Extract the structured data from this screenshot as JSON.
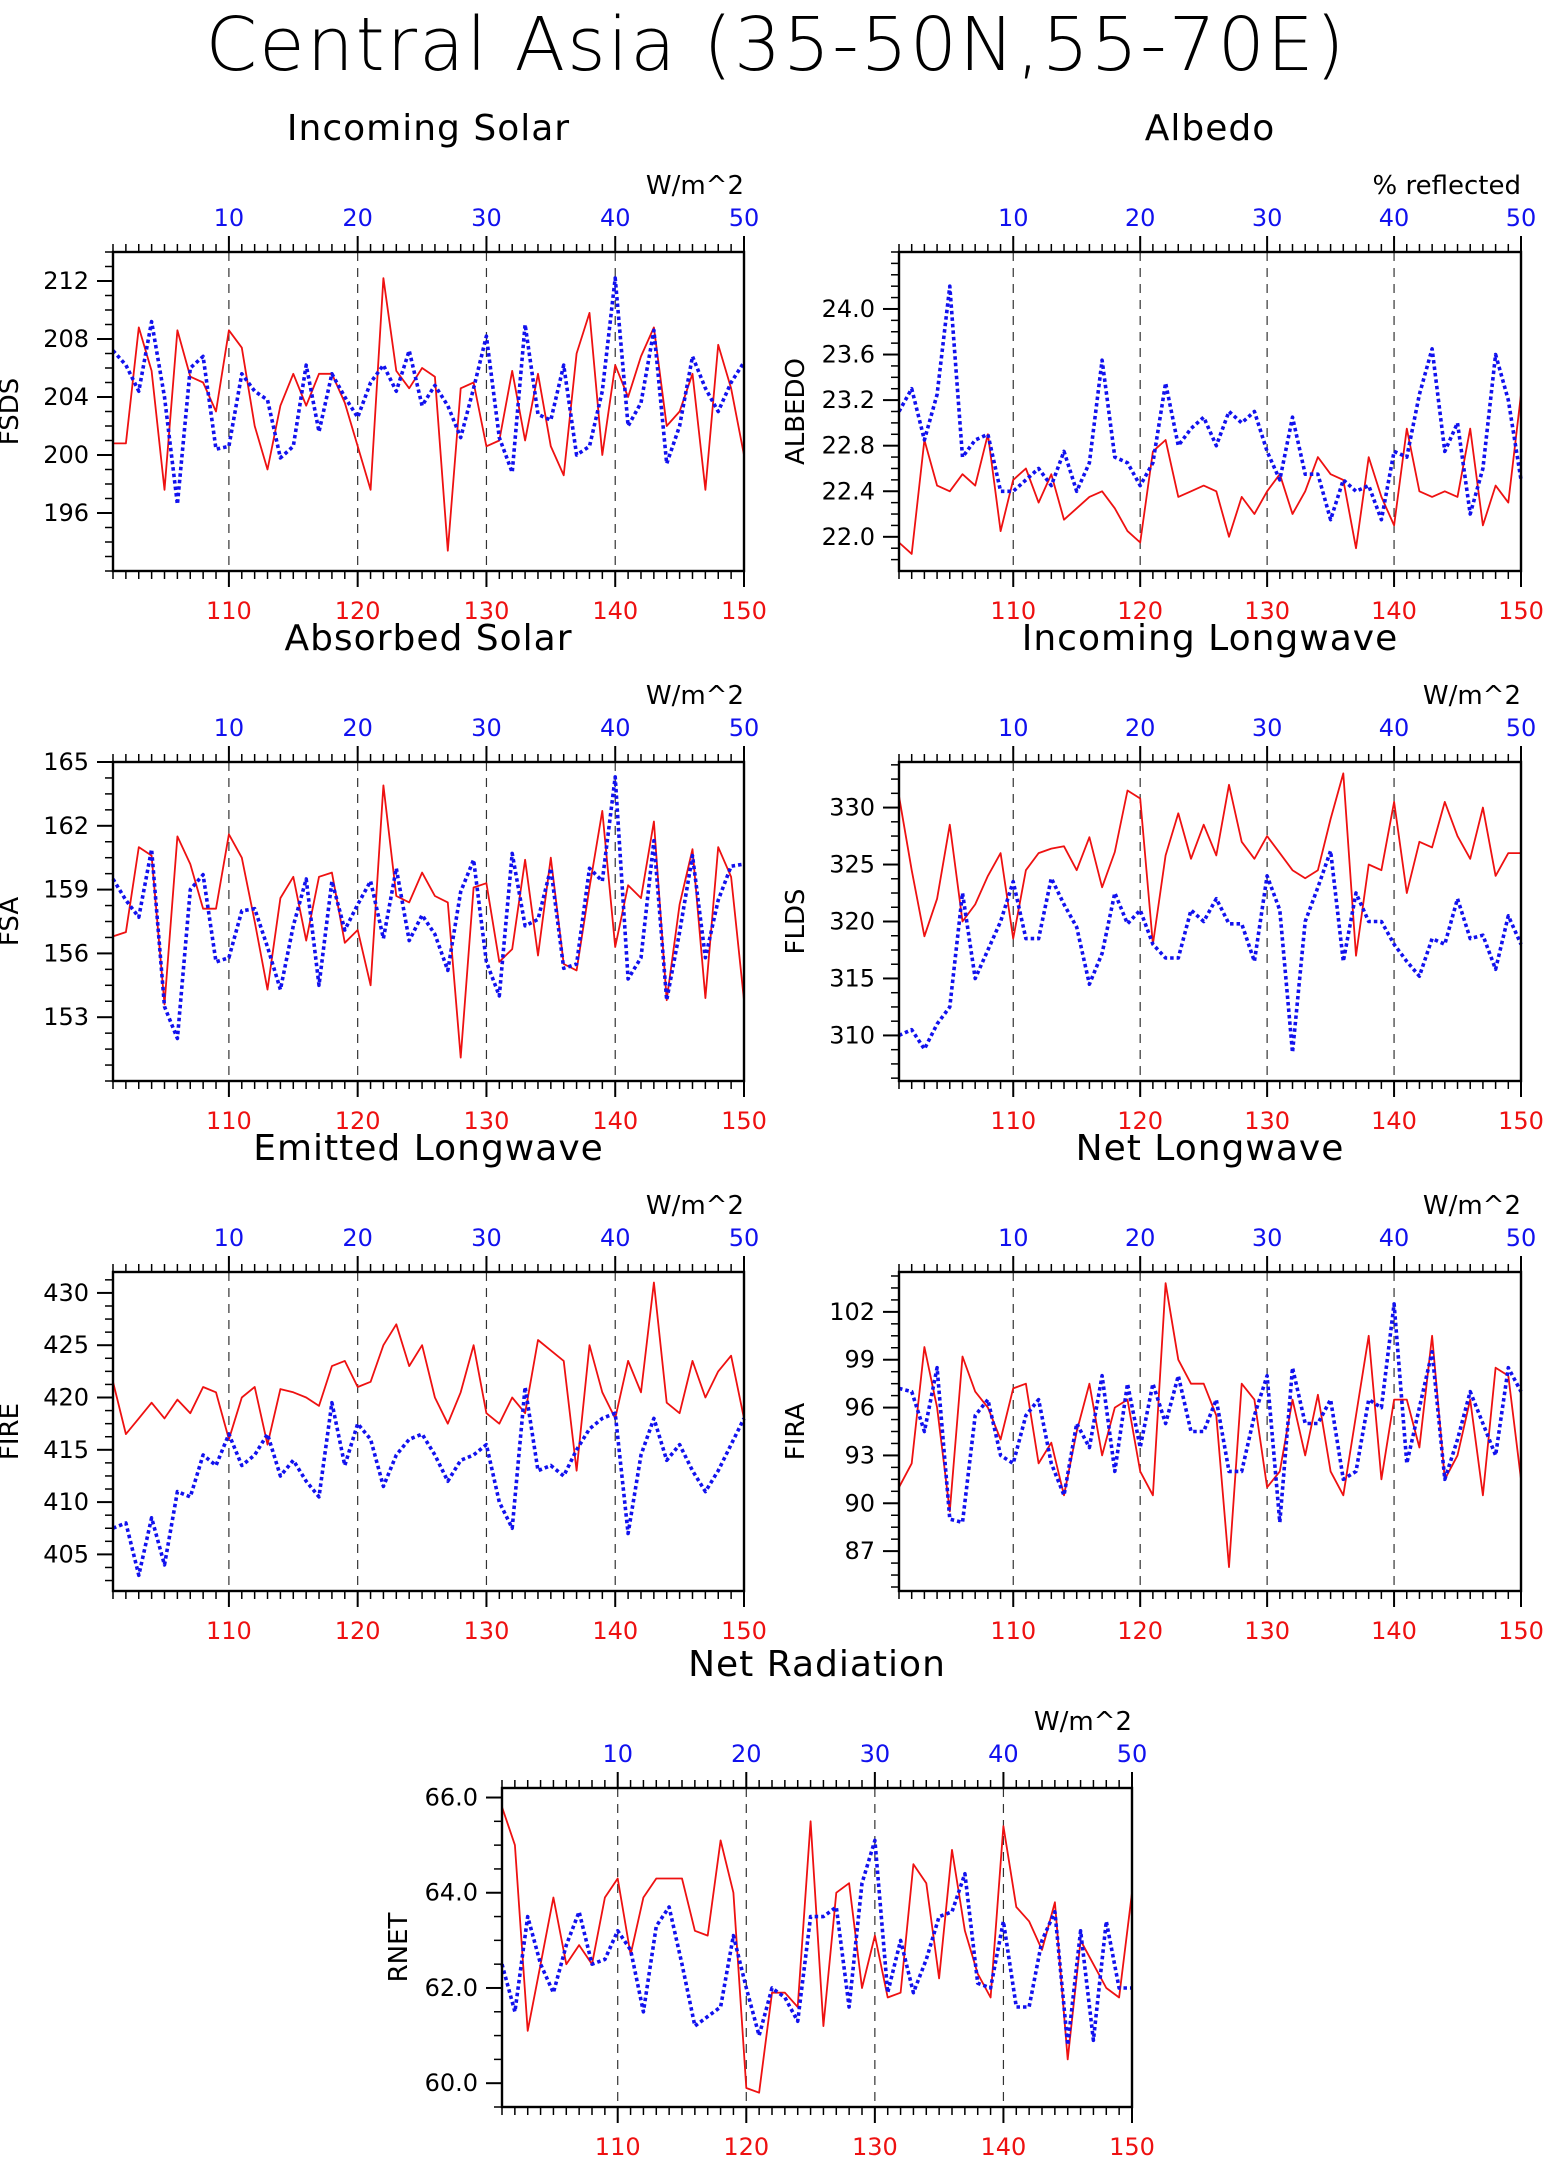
{
  "title": "Central Asia (35-50N,55-70E)",
  "colors": {
    "series_a": "#ee1111",
    "series_b": "#1111ee",
    "axis": "#000000"
  },
  "chart_data": [
    {
      "id": "fsds",
      "type": "line",
      "title": "Incoming Solar",
      "ylabel": "FSDS",
      "units": "W/m^2",
      "x_bottom": [
        101,
        150
      ],
      "x_bottom_ticks": [
        110,
        120,
        130,
        140,
        150
      ],
      "x_top": [
        1,
        50
      ],
      "x_top_ticks": [
        10,
        20,
        30,
        40,
        50
      ],
      "ylim": [
        192,
        214
      ],
      "yticks": [
        196,
        200,
        204,
        208,
        212
      ],
      "ytick_labels": [
        "196",
        "200",
        "204",
        "208",
        "212"
      ],
      "series": [
        {
          "style": "solid",
          "color": "red",
          "values": [
            200.8,
            200.8,
            208.8,
            205.8,
            197.6,
            208.6,
            205.4,
            205.0,
            203.0,
            208.6,
            207.4,
            202.0,
            199.0,
            203.4,
            205.6,
            203.4,
            205.6,
            205.6,
            203.6,
            200.6,
            197.6,
            212.2,
            205.8,
            204.6,
            206.0,
            205.4,
            193.4,
            204.6,
            205.0,
            200.6,
            201.0,
            205.8,
            201.0,
            205.6,
            200.6,
            198.6,
            207.0,
            209.8,
            200.0,
            206.2,
            204.0,
            206.8,
            208.8,
            202.0,
            203.0,
            205.6,
            197.6,
            207.6,
            204.6,
            200.0
          ]
        },
        {
          "style": "dotted",
          "color": "blue",
          "values": [
            207.2,
            206.2,
            204.4,
            209.2,
            204.0,
            196.6,
            206.0,
            206.8,
            200.4,
            200.6,
            205.6,
            204.4,
            203.8,
            199.8,
            200.6,
            206.2,
            201.6,
            205.6,
            204.0,
            202.6,
            205.0,
            206.2,
            204.4,
            207.2,
            203.4,
            204.8,
            203.4,
            201.2,
            204.6,
            208.2,
            201.2,
            198.8,
            209.0,
            202.8,
            202.4,
            206.2,
            200.0,
            200.6,
            204.4,
            212.2,
            202.0,
            203.6,
            208.6,
            199.4,
            202.0,
            206.8,
            204.6,
            203.0,
            205.0,
            206.4
          ]
        }
      ]
    },
    {
      "id": "albedo",
      "type": "line",
      "title": "Albedo",
      "ylabel": "ALBEDO",
      "units": "% reflected",
      "x_bottom": [
        101,
        150
      ],
      "x_bottom_ticks": [
        110,
        120,
        130,
        140,
        150
      ],
      "x_top": [
        1,
        50
      ],
      "x_top_ticks": [
        10,
        20,
        30,
        40,
        50
      ],
      "ylim": [
        21.7,
        24.5
      ],
      "yticks": [
        22.0,
        22.4,
        22.8,
        23.2,
        23.6,
        24.0
      ],
      "ytick_labels": [
        "22.0",
        "22.4",
        "22.8",
        "23.2",
        "23.6",
        "24.0"
      ],
      "series": [
        {
          "style": "solid",
          "color": "red",
          "values": [
            21.95,
            21.85,
            22.85,
            22.45,
            22.4,
            22.55,
            22.45,
            22.9,
            22.05,
            22.5,
            22.6,
            22.3,
            22.55,
            22.15,
            22.25,
            22.35,
            22.4,
            22.25,
            22.05,
            21.95,
            22.75,
            22.85,
            22.35,
            22.4,
            22.45,
            22.4,
            22.0,
            22.35,
            22.2,
            22.4,
            22.55,
            22.2,
            22.4,
            22.7,
            22.55,
            22.5,
            21.9,
            22.7,
            22.35,
            22.1,
            22.95,
            22.4,
            22.35,
            22.4,
            22.35,
            22.95,
            22.1,
            22.45,
            22.3,
            23.25
          ]
        },
        {
          "style": "dotted",
          "color": "blue",
          "values": [
            23.1,
            23.3,
            22.85,
            23.25,
            24.2,
            22.7,
            22.85,
            22.9,
            22.4,
            22.4,
            22.5,
            22.6,
            22.45,
            22.75,
            22.4,
            22.65,
            23.55,
            22.7,
            22.65,
            22.45,
            22.65,
            23.35,
            22.8,
            22.95,
            23.05,
            22.8,
            23.1,
            23.0,
            23.1,
            22.75,
            22.5,
            23.05,
            22.55,
            22.55,
            22.15,
            22.5,
            22.4,
            22.45,
            22.15,
            22.75,
            22.7,
            23.25,
            23.65,
            22.75,
            23.0,
            22.2,
            22.6,
            23.6,
            23.2,
            22.5
          ]
        }
      ]
    },
    {
      "id": "fsa",
      "type": "line",
      "title": "Absorbed Solar",
      "ylabel": "FSA",
      "units": "W/m^2",
      "x_bottom": [
        101,
        150
      ],
      "x_bottom_ticks": [
        110,
        120,
        130,
        140,
        150
      ],
      "x_top": [
        1,
        50
      ],
      "x_top_ticks": [
        10,
        20,
        30,
        40,
        50
      ],
      "ylim": [
        150,
        165
      ],
      "yticks": [
        153,
        156,
        159,
        162,
        165
      ],
      "ytick_labels": [
        "153",
        "156",
        "159",
        "162",
        "165"
      ],
      "series": [
        {
          "style": "solid",
          "color": "red",
          "values": [
            156.8,
            157.0,
            161.0,
            160.6,
            153.6,
            161.5,
            160.2,
            158.1,
            158.1,
            161.6,
            160.5,
            157.5,
            154.3,
            158.6,
            159.6,
            156.6,
            159.6,
            159.8,
            156.5,
            157.1,
            154.5,
            163.9,
            158.7,
            158.4,
            159.8,
            158.7,
            158.4,
            151.1,
            159.1,
            159.3,
            155.6,
            156.2,
            160.4,
            155.9,
            160.5,
            155.5,
            155.2,
            159.1,
            162.7,
            156.3,
            159.2,
            158.6,
            162.2,
            153.8,
            158.3,
            160.9,
            153.9,
            161.0,
            159.6,
            153.8
          ]
        },
        {
          "style": "dotted",
          "color": "blue",
          "values": [
            159.5,
            158.5,
            157.7,
            160.9,
            153.5,
            152.0,
            159.0,
            159.7,
            155.6,
            155.8,
            158.0,
            158.1,
            156.3,
            154.3,
            157.3,
            159.5,
            154.5,
            159.4,
            157.1,
            158.3,
            159.4,
            156.7,
            160.0,
            156.6,
            157.8,
            156.9,
            155.2,
            158.9,
            160.4,
            155.6,
            154.0,
            160.7,
            157.3,
            157.6,
            160.0,
            155.3,
            155.5,
            160.0,
            159.4,
            164.3,
            154.8,
            155.8,
            161.3,
            153.8,
            157.0,
            160.6,
            155.8,
            158.5,
            160.1,
            160.2
          ]
        }
      ]
    },
    {
      "id": "flds",
      "type": "line",
      "title": "Incoming Longwave",
      "ylabel": "FLDS",
      "units": "W/m^2",
      "x_bottom": [
        101,
        150
      ],
      "x_bottom_ticks": [
        110,
        120,
        130,
        140,
        150
      ],
      "x_top": [
        1,
        50
      ],
      "x_top_ticks": [
        10,
        20,
        30,
        40,
        50
      ],
      "ylim": [
        306,
        334
      ],
      "yticks": [
        310,
        315,
        320,
        325,
        330
      ],
      "ytick_labels": [
        "310",
        "315",
        "320",
        "325",
        "330"
      ],
      "series": [
        {
          "style": "solid",
          "color": "red",
          "values": [
            331.0,
            324.5,
            318.7,
            322.0,
            328.5,
            320.0,
            321.5,
            324.0,
            326.0,
            318.5,
            324.5,
            326.0,
            326.4,
            326.6,
            324.5,
            327.4,
            323.0,
            326.1,
            331.5,
            330.8,
            318.0,
            325.8,
            329.5,
            325.5,
            328.5,
            325.8,
            332.0,
            327.0,
            325.5,
            327.5,
            326.0,
            324.5,
            323.8,
            324.5,
            329.0,
            333.0,
            317.0,
            325.0,
            324.5,
            330.5,
            322.5,
            327.0,
            326.5,
            330.5,
            327.5,
            325.5,
            330.0,
            324.0,
            326.0,
            326.0
          ]
        },
        {
          "style": "dotted",
          "color": "blue",
          "values": [
            310.0,
            310.5,
            308.8,
            311.0,
            312.5,
            322.5,
            315.0,
            317.5,
            320.0,
            323.5,
            318.5,
            318.5,
            323.8,
            321.5,
            319.5,
            314.5,
            317.2,
            322.5,
            319.8,
            321.0,
            318.0,
            316.8,
            316.8,
            321.0,
            320.0,
            322.0,
            319.8,
            319.8,
            316.5,
            324.0,
            321.0,
            308.5,
            320.0,
            323.0,
            326.2,
            316.5,
            322.5,
            320.0,
            320.0,
            318.0,
            316.5,
            315.2,
            318.5,
            318.0,
            322.0,
            318.5,
            318.8,
            315.8,
            320.5,
            318.0
          ]
        }
      ]
    },
    {
      "id": "fire",
      "type": "line",
      "title": "Emitted Longwave",
      "ylabel": "FIRE",
      "units": "W/m^2",
      "x_bottom": [
        101,
        150
      ],
      "x_bottom_ticks": [
        110,
        120,
        130,
        140,
        150
      ],
      "x_top": [
        1,
        50
      ],
      "x_top_ticks": [
        10,
        20,
        30,
        40,
        50
      ],
      "ylim": [
        401.5,
        432
      ],
      "yticks": [
        405,
        410,
        415,
        420,
        425,
        430
      ],
      "ytick_labels": [
        "405",
        "410",
        "415",
        "420",
        "425",
        "430"
      ],
      "series": [
        {
          "style": "solid",
          "color": "red",
          "values": [
            421.5,
            416.5,
            418.0,
            419.5,
            418.0,
            419.8,
            418.5,
            421.0,
            420.5,
            416.0,
            420.0,
            421.0,
            415.5,
            420.8,
            420.5,
            420.0,
            419.2,
            423.0,
            423.5,
            421.0,
            421.5,
            425.0,
            427.0,
            423.0,
            425.0,
            420.0,
            417.5,
            420.5,
            425.0,
            418.5,
            417.5,
            420.0,
            418.5,
            425.5,
            424.5,
            423.5,
            413.0,
            425.0,
            420.5,
            418.0,
            423.5,
            420.5,
            431.0,
            419.5,
            418.5,
            423.5,
            420.0,
            422.5,
            424.0,
            418.0
          ]
        },
        {
          "style": "dotted",
          "color": "blue",
          "values": [
            407.5,
            408.0,
            403.0,
            408.5,
            404.0,
            411.0,
            410.5,
            414.5,
            413.5,
            416.5,
            413.5,
            414.5,
            416.5,
            412.5,
            414.0,
            412.0,
            410.5,
            419.5,
            413.5,
            417.5,
            416.0,
            411.5,
            414.5,
            416.0,
            416.5,
            414.5,
            412.0,
            414.0,
            414.5,
            415.5,
            410.0,
            407.5,
            421.0,
            413.0,
            413.5,
            412.5,
            415.0,
            417.0,
            418.0,
            418.5,
            407.0,
            414.5,
            418.0,
            414.0,
            415.5,
            413.0,
            411.0,
            413.0,
            415.5,
            418.0
          ]
        }
      ]
    },
    {
      "id": "fira",
      "type": "line",
      "title": "Net Longwave",
      "ylabel": "FIRA",
      "units": "W/m^2",
      "x_bottom": [
        101,
        150
      ],
      "x_bottom_ticks": [
        110,
        120,
        130,
        140,
        150
      ],
      "x_top": [
        1,
        50
      ],
      "x_top_ticks": [
        10,
        20,
        30,
        40,
        50
      ],
      "ylim": [
        84.5,
        104.5
      ],
      "yticks": [
        87,
        90,
        93,
        96,
        99,
        102
      ],
      "ytick_labels": [
        "87",
        "90",
        "93",
        "96",
        "99",
        "102"
      ],
      "series": [
        {
          "style": "solid",
          "color": "red",
          "values": [
            91.0,
            92.5,
            99.8,
            96.0,
            89.5,
            99.2,
            97.0,
            96.0,
            94.0,
            97.2,
            97.5,
            92.5,
            93.8,
            90.5,
            94.5,
            97.5,
            93.0,
            96.0,
            96.5,
            92.0,
            90.5,
            103.8,
            99.0,
            97.5,
            97.5,
            95.5,
            86.0,
            97.5,
            96.5,
            91.0,
            92.0,
            96.5,
            93.0,
            96.8,
            92.0,
            90.5,
            95.5,
            100.5,
            91.5,
            96.5,
            96.5,
            93.5,
            100.5,
            91.5,
            93.0,
            96.5,
            90.5,
            98.5,
            98.0,
            91.5
          ]
        },
        {
          "style": "dotted",
          "color": "blue",
          "values": [
            97.2,
            97.0,
            94.5,
            98.5,
            89.0,
            88.8,
            95.5,
            96.5,
            93.0,
            92.5,
            95.5,
            96.5,
            92.5,
            90.5,
            95.0,
            93.5,
            98.0,
            92.0,
            97.5,
            93.5,
            97.5,
            95.0,
            98.0,
            94.5,
            94.5,
            96.5,
            92.0,
            92.0,
            95.5,
            98.0,
            88.8,
            98.5,
            95.0,
            95.0,
            96.5,
            91.5,
            92.0,
            96.5,
            96.0,
            102.5,
            92.5,
            96.0,
            99.5,
            91.5,
            94.0,
            97.0,
            95.0,
            93.0,
            98.5,
            97.0
          ]
        }
      ]
    },
    {
      "id": "rnet",
      "type": "line",
      "title": "Net Radiation",
      "ylabel": "RNET",
      "units": "W/m^2",
      "x_bottom": [
        101,
        150
      ],
      "x_bottom_ticks": [
        110,
        120,
        130,
        140,
        150
      ],
      "x_top": [
        1,
        50
      ],
      "x_top_ticks": [
        10,
        20,
        30,
        40,
        50
      ],
      "ylim": [
        59.5,
        66.2
      ],
      "yticks": [
        60,
        62,
        64,
        66
      ],
      "ytick_labels": [
        "60.0",
        "62.0",
        "64.0",
        "66.0"
      ],
      "series": [
        {
          "style": "solid",
          "color": "red",
          "values": [
            65.8,
            65.0,
            61.1,
            62.5,
            63.9,
            62.5,
            62.9,
            62.5,
            63.9,
            64.3,
            62.7,
            63.9,
            64.3,
            64.3,
            64.3,
            63.2,
            63.1,
            65.1,
            64.0,
            59.9,
            59.8,
            61.9,
            61.9,
            61.6,
            65.5,
            61.2,
            64.0,
            64.2,
            62.0,
            63.1,
            61.8,
            61.9,
            64.6,
            64.2,
            62.2,
            64.9,
            63.2,
            62.3,
            61.8,
            65.4,
            63.7,
            63.4,
            62.8,
            63.8,
            60.5,
            63.0,
            62.5,
            62.0,
            61.8,
            64.0
          ]
        },
        {
          "style": "dotted",
          "color": "blue",
          "values": [
            62.5,
            61.5,
            63.5,
            62.5,
            61.9,
            62.9,
            63.6,
            62.5,
            62.6,
            63.2,
            62.8,
            61.5,
            63.3,
            63.7,
            62.5,
            61.2,
            61.4,
            61.6,
            63.1,
            62.0,
            61.0,
            62.0,
            61.8,
            61.3,
            63.5,
            63.5,
            63.7,
            61.6,
            64.2,
            65.1,
            61.9,
            63.0,
            61.9,
            62.6,
            63.5,
            63.6,
            64.4,
            62.1,
            62.0,
            63.4,
            61.6,
            61.6,
            63.0,
            63.6,
            60.8,
            63.2,
            60.9,
            63.4,
            62.0,
            62.0
          ]
        }
      ]
    }
  ]
}
